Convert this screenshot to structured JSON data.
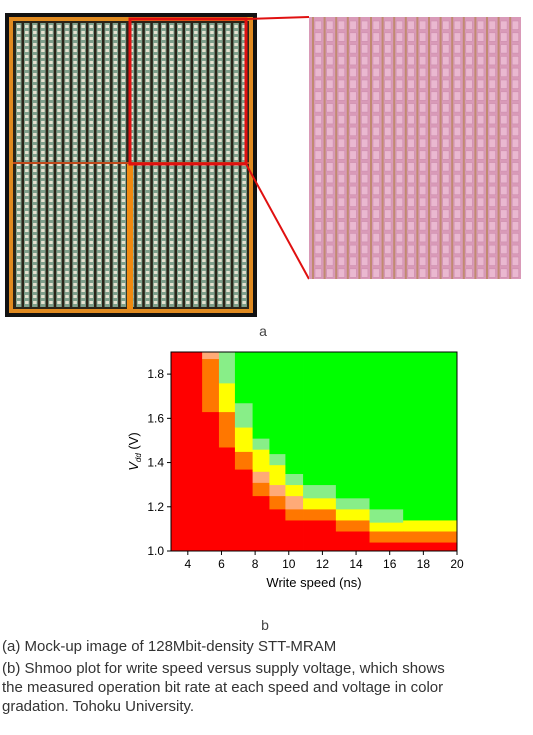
{
  "panel_a": {
    "label": "a"
  },
  "panel_b": {
    "label": "b"
  },
  "colors": {
    "chip_bg": "#1a1a1a",
    "chip_metal": "#c8a040",
    "chip_orange": "#e08a20",
    "zoom_pink": "#d99ab8",
    "highlight_red": "#e01010",
    "fail_red": "#ff0000",
    "pass_green": "#00ff00"
  },
  "chart_data": {
    "type": "heatmap",
    "title": "",
    "xlabel": "Write speed (ns)",
    "ylabel_main": "V",
    "ylabel_sub": "dd",
    "ylabel_tail": " (V)",
    "xlim": [
      3,
      20
    ],
    "ylim": [
      1.0,
      1.9
    ],
    "xticks": [
      "4",
      "6",
      "8",
      "10",
      "12",
      "14",
      "16",
      "18",
      "20"
    ],
    "xtick_values": [
      4,
      6,
      8,
      10,
      12,
      14,
      16,
      18,
      20
    ],
    "yticks": [
      "1.0",
      "1.2",
      "1.4",
      "1.6",
      "1.8"
    ],
    "ytick_values": [
      1.0,
      1.2,
      1.4,
      1.6,
      1.8
    ],
    "color_scale": [
      "#ff0000",
      "#ff7700",
      "#ffaa77",
      "#ffff00",
      "#88ee88",
      "#00ff00"
    ],
    "columns": [
      {
        "x0": 3,
        "x1": 4.85,
        "bands": [
          [
            1.0,
            1.9,
            0
          ]
        ]
      },
      {
        "x0": 4.85,
        "x1": 5.85,
        "bands": [
          [
            1.0,
            1.63,
            0
          ],
          [
            1.63,
            1.87,
            1
          ],
          [
            1.87,
            1.9,
            2
          ]
        ]
      },
      {
        "x0": 5.85,
        "x1": 6.8,
        "bands": [
          [
            1.0,
            1.47,
            0
          ],
          [
            1.47,
            1.63,
            1
          ],
          [
            1.63,
            1.76,
            3
          ],
          [
            1.76,
            1.9,
            4
          ]
        ]
      },
      {
        "x0": 6.8,
        "x1": 7.85,
        "bands": [
          [
            1.0,
            1.37,
            0
          ],
          [
            1.37,
            1.45,
            1
          ],
          [
            1.45,
            1.56,
            3
          ],
          [
            1.56,
            1.67,
            4
          ],
          [
            1.67,
            1.9,
            5
          ]
        ]
      },
      {
        "x0": 7.85,
        "x1": 8.85,
        "bands": [
          [
            1.0,
            1.25,
            0
          ],
          [
            1.25,
            1.31,
            1
          ],
          [
            1.31,
            1.36,
            2
          ],
          [
            1.36,
            1.46,
            3
          ],
          [
            1.46,
            1.51,
            4
          ],
          [
            1.51,
            1.9,
            5
          ]
        ]
      },
      {
        "x0": 8.85,
        "x1": 9.8,
        "bands": [
          [
            1.0,
            1.19,
            0
          ],
          [
            1.19,
            1.25,
            1
          ],
          [
            1.25,
            1.3,
            2
          ],
          [
            1.3,
            1.39,
            3
          ],
          [
            1.39,
            1.44,
            4
          ],
          [
            1.44,
            1.9,
            5
          ]
        ]
      },
      {
        "x0": 9.8,
        "x1": 10.85,
        "bands": [
          [
            1.0,
            1.14,
            0
          ],
          [
            1.14,
            1.19,
            1
          ],
          [
            1.19,
            1.25,
            2
          ],
          [
            1.25,
            1.3,
            3
          ],
          [
            1.3,
            1.35,
            4
          ],
          [
            1.35,
            1.9,
            5
          ]
        ]
      },
      {
        "x0": 10.85,
        "x1": 12.8,
        "bands": [
          [
            1.0,
            1.14,
            0
          ],
          [
            1.14,
            1.19,
            1
          ],
          [
            1.19,
            1.24,
            3
          ],
          [
            1.24,
            1.3,
            4
          ],
          [
            1.3,
            1.9,
            5
          ]
        ]
      },
      {
        "x0": 12.8,
        "x1": 14.8,
        "bands": [
          [
            1.0,
            1.09,
            0
          ],
          [
            1.09,
            1.14,
            1
          ],
          [
            1.14,
            1.19,
            3
          ],
          [
            1.19,
            1.24,
            4
          ],
          [
            1.24,
            1.9,
            5
          ]
        ]
      },
      {
        "x0": 14.8,
        "x1": 16.8,
        "bands": [
          [
            1.0,
            1.04,
            0
          ],
          [
            1.04,
            1.09,
            1
          ],
          [
            1.09,
            1.13,
            3
          ],
          [
            1.13,
            1.19,
            4
          ],
          [
            1.19,
            1.9,
            5
          ]
        ]
      },
      {
        "x0": 16.8,
        "x1": 20,
        "bands": [
          [
            1.0,
            1.04,
            0
          ],
          [
            1.04,
            1.09,
            1
          ],
          [
            1.09,
            1.14,
            3
          ],
          [
            1.14,
            1.9,
            5
          ]
        ]
      }
    ]
  },
  "caption": {
    "line_a": "(a) Mock-up image of 128Mbit-density STT-MRAM",
    "line_b1": "(b) Shmoo plot for write speed versus supply voltage, which shows",
    "line_b2": "the measured operation bit rate at each speed and voltage in color",
    "line_b3": "gradation. Tohoku University."
  }
}
